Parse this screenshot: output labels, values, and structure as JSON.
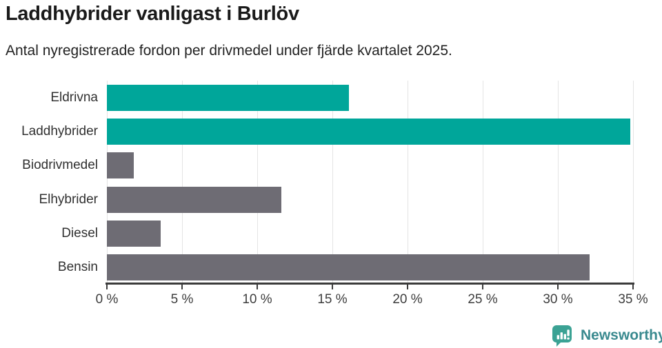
{
  "chart_data": {
    "type": "bar",
    "orientation": "horizontal",
    "title": "Laddhybrider vanligast i Burlöv",
    "subtitle": "Antal nyregistrerade fordon per drivmedel under fjärde kvartalet 2025.",
    "categories": [
      "Eldrivna",
      "Laddhybrider",
      "Biodrivmedel",
      "Elhybrider",
      "Diesel",
      "Bensin"
    ],
    "values": [
      16.1,
      34.8,
      1.8,
      11.6,
      3.6,
      32.1
    ],
    "unit": "%",
    "xlabel": "",
    "ylabel": "",
    "xlim": [
      0,
      35
    ],
    "x_ticks": [
      0,
      5,
      10,
      15,
      20,
      25,
      30,
      35
    ],
    "x_tick_labels": [
      "0 %",
      "5 %",
      "10 %",
      "15 %",
      "20 %",
      "25 %",
      "30 %",
      "35 %"
    ],
    "grid": true,
    "legend": false,
    "bar_colors": [
      "#00a69a",
      "#00a69a",
      "#6e6c74",
      "#6e6c74",
      "#6e6c74",
      "#6e6c74"
    ],
    "highlight_color": "#00a69a",
    "base_color": "#6e6c74",
    "gridline_color": "#e4e4e4",
    "axis_color": "#3b3b3b"
  },
  "footer": {
    "brand": "Newsworthy",
    "brand_color": "#3a8a8f",
    "icon_color": "#3ba294",
    "icon_name": "newsworthy-speech-bubble-chart-icon"
  }
}
